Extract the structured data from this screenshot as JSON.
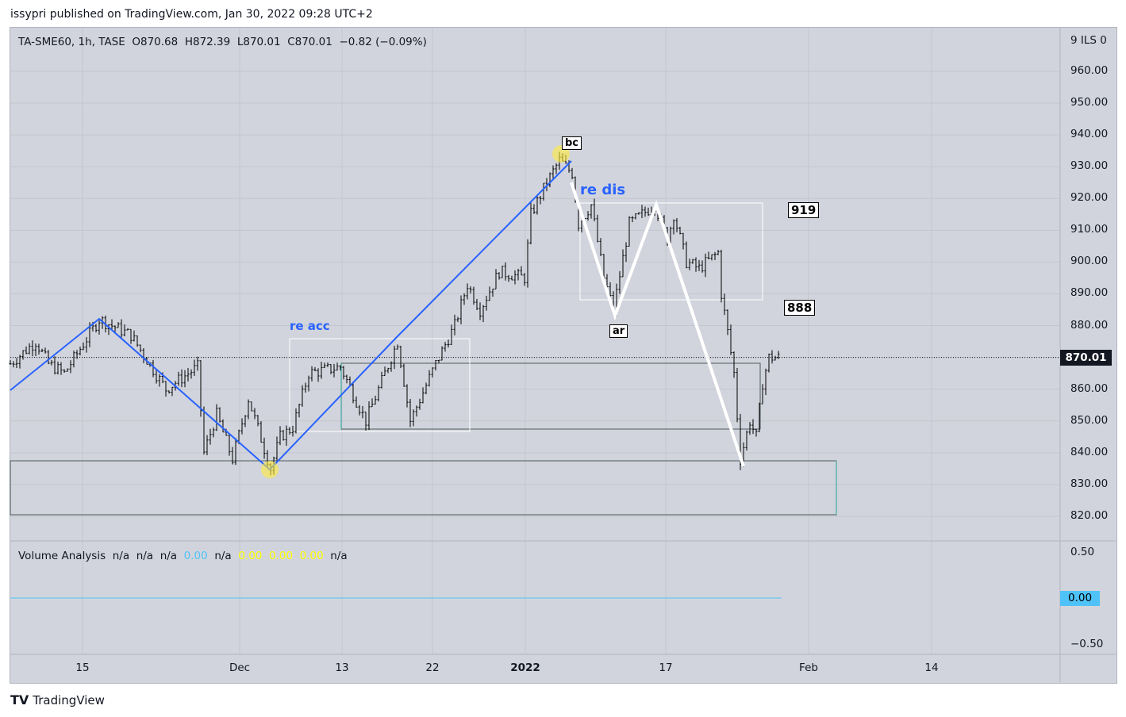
{
  "publisher": "issypri published on TradingView.com, Jan 30, 2022 09:28 UTC+2",
  "legend": {
    "symbol": "TA-SME60, 1h, TASE",
    "open": "O870.68",
    "high": "H872.39",
    "low": "L870.01",
    "close": "C870.01",
    "change": "−0.82 (−0.09%)"
  },
  "volume": {
    "title": "Volume Analysis",
    "v1": "n/a",
    "v2": "n/a",
    "v3": "n/a",
    "v4": "0.00",
    "v5": "n/a",
    "v6": "0.00",
    "v7": "0.00",
    "v8": "0.00",
    "v9": "n/a",
    "axis": [
      "0.50",
      "−0.50"
    ],
    "last": "0.00",
    "cyan": "#4fc3f7",
    "yellow": "#ffff00"
  },
  "price_axis": {
    "currency": "9 ILS 0",
    "ticks": [
      "960.00",
      "950.00",
      "940.00",
      "930.00",
      "920.00",
      "910.00",
      "900.00",
      "890.00",
      "880.00",
      "870.00",
      "860.00",
      "850.00",
      "840.00",
      "830.00",
      "820.00"
    ],
    "last": "870.01"
  },
  "time_axis": [
    "15",
    "Dec",
    "13",
    "22",
    "2022",
    "17",
    "Feb",
    "14"
  ],
  "annotations": {
    "re_acc": "re acc",
    "re_dis": "re dis",
    "bc": "bc",
    "ar": "ar",
    "l919": "919",
    "l888": "888",
    "blue": "#2962ff"
  },
  "chart_data": {
    "type": "candlestick",
    "symbol": "TA-SME60",
    "interval": "1h",
    "ylim": [
      815,
      965
    ],
    "anchors_bar_price": [
      [
        0,
        868
      ],
      [
        8,
        875
      ],
      [
        12,
        868
      ],
      [
        17,
        865
      ],
      [
        28,
        882
      ],
      [
        38,
        877
      ],
      [
        49,
        860
      ],
      [
        59,
        867
      ],
      [
        61,
        840
      ],
      [
        65,
        852
      ],
      [
        70,
        838
      ],
      [
        75,
        857
      ],
      [
        82,
        835
      ],
      [
        85,
        845
      ],
      [
        89,
        848
      ],
      [
        94,
        865
      ],
      [
        104,
        867
      ],
      [
        112,
        850
      ],
      [
        122,
        875
      ],
      [
        126,
        850
      ],
      [
        134,
        868
      ],
      [
        140,
        880
      ],
      [
        144,
        893
      ],
      [
        148,
        885
      ],
      [
        154,
        897
      ],
      [
        162,
        895
      ],
      [
        164,
        915
      ],
      [
        169,
        925
      ],
      [
        173,
        932
      ],
      [
        177,
        928
      ],
      [
        179,
        912
      ],
      [
        183,
        918
      ],
      [
        187,
        895
      ],
      [
        190,
        885
      ],
      [
        195,
        912
      ],
      [
        203,
        918
      ],
      [
        207,
        907
      ],
      [
        209,
        915
      ],
      [
        213,
        900
      ],
      [
        217,
        898
      ],
      [
        223,
        903
      ],
      [
        224,
        890
      ],
      [
        226,
        878
      ],
      [
        228,
        865
      ],
      [
        230,
        838
      ],
      [
        233,
        850
      ],
      [
        235,
        845
      ],
      [
        237,
        862
      ],
      [
        239,
        870
      ],
      [
        243,
        870
      ]
    ],
    "last": 870.01
  },
  "brand": "TradingView"
}
